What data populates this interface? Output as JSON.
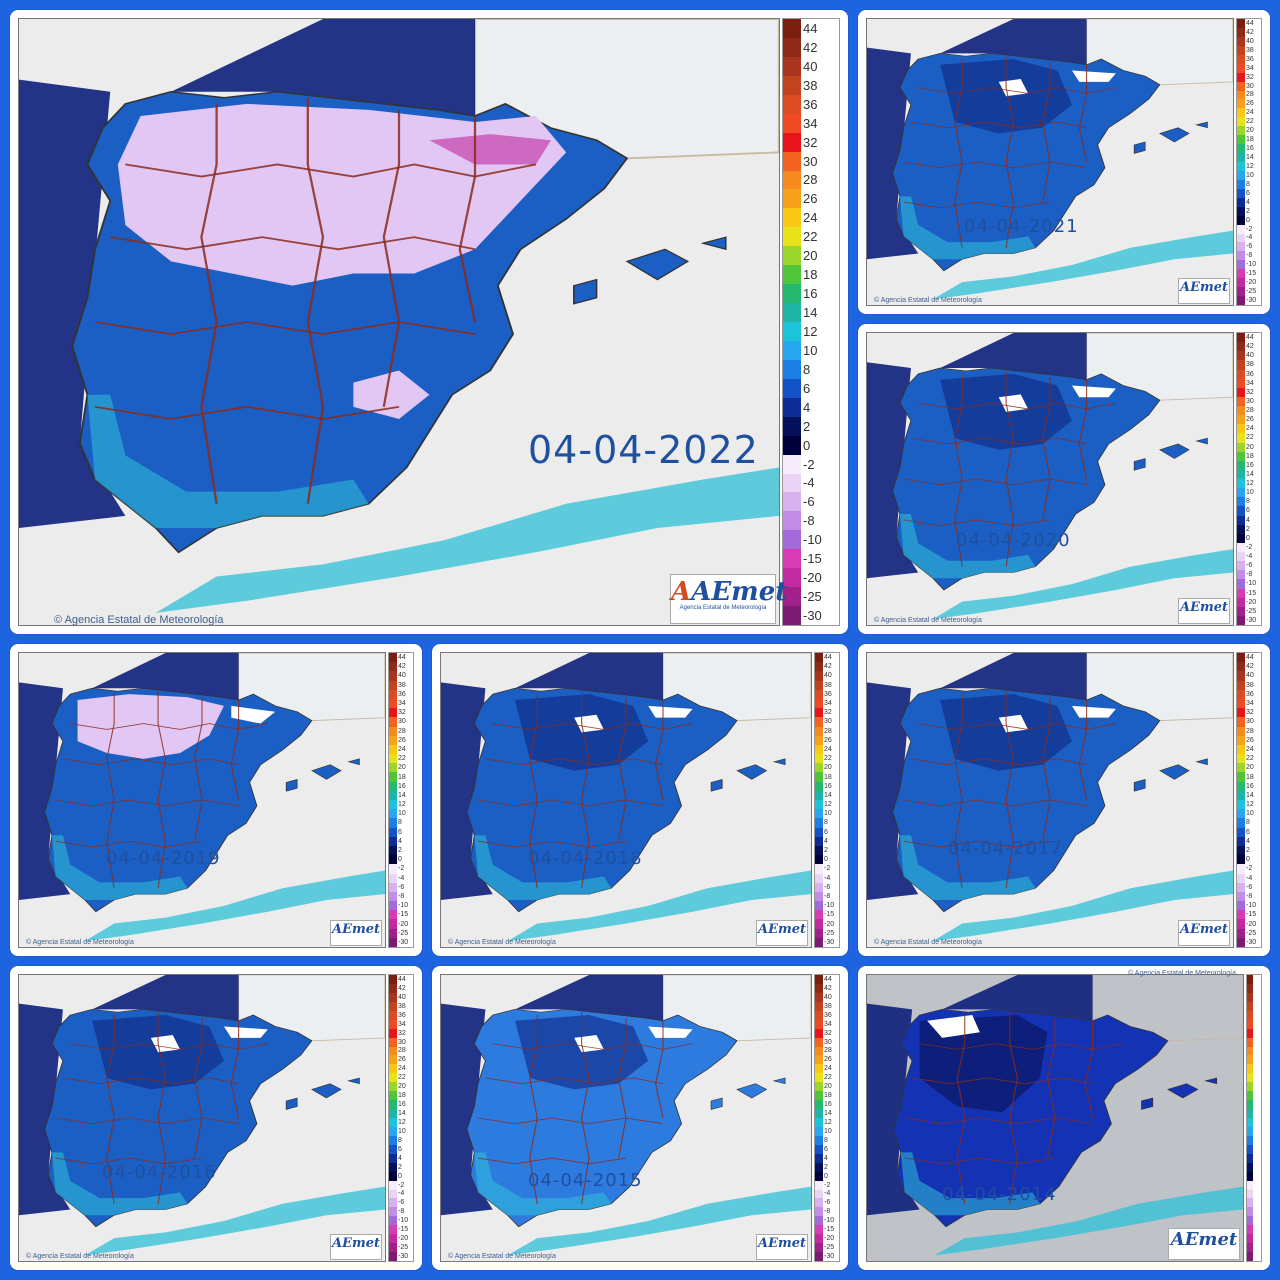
{
  "collage": {
    "panels": [
      {
        "date": "04-04-2022",
        "variant": "cold-2022",
        "gray_bg": false
      },
      {
        "date": "04-04-2021",
        "variant": "mild",
        "gray_bg": false
      },
      {
        "date": "04-04-2020",
        "variant": "mild",
        "gray_bg": false
      },
      {
        "date": "04-04-2019",
        "variant": "cold-2019",
        "gray_bg": false
      },
      {
        "date": "04-04-2018",
        "variant": "mild",
        "gray_bg": false
      },
      {
        "date": "04-04-2017",
        "variant": "mild",
        "gray_bg": false
      },
      {
        "date": "04-04-2016",
        "variant": "mild",
        "gray_bg": false
      },
      {
        "date": "04-04-2015",
        "variant": "warm",
        "gray_bg": false
      },
      {
        "date": "04-04-2014",
        "variant": "dark",
        "gray_bg": true
      }
    ],
    "credit": "Agencia Estatal de Meteorología",
    "logo_text": "AEmet",
    "logo_sub": "Agencia Estatal de Meteorología",
    "scale": {
      "labels": [
        "44",
        "42",
        "40",
        "38",
        "36",
        "34",
        "32",
        "30",
        "28",
        "26",
        "24",
        "22",
        "20",
        "18",
        "16",
        "14",
        "12",
        "10",
        "8",
        "6",
        "4",
        "2",
        "0",
        "-2",
        "-4",
        "-6",
        "-8",
        "-10",
        "-15",
        "-20",
        "-25",
        "-30"
      ],
      "colors": [
        "#7a1e10",
        "#8f2a18",
        "#a8361e",
        "#c2441f",
        "#dc4b22",
        "#f04a24",
        "#e8141c",
        "#f26322",
        "#f58a1e",
        "#f7a11b",
        "#f9c716",
        "#e8e21a",
        "#9dd62a",
        "#4fc63a",
        "#24b870",
        "#1fb5a6",
        "#1dc3d8",
        "#28a6ef",
        "#1c7fe3",
        "#1452c8",
        "#0d2d95",
        "#05105a",
        "#00003a",
        "#f6ecfa",
        "#e9d4f5",
        "#d7b2ee",
        "#c28de6",
        "#a36bd9",
        "#d63cb4",
        "#c22a9f",
        "#a02189",
        "#7d1a72"
      ]
    },
    "colors": {
      "frame": "#1e63e0",
      "sea": "#ececec",
      "france": "#eceff1",
      "land_blue": "#1b5fc4",
      "land_mid": "#2e7be0",
      "land_cyan": "#2fc0d8",
      "land_dark": "#0d1f7a",
      "frost": "#e2c7f4",
      "border": "#8b2a1a"
    }
  }
}
